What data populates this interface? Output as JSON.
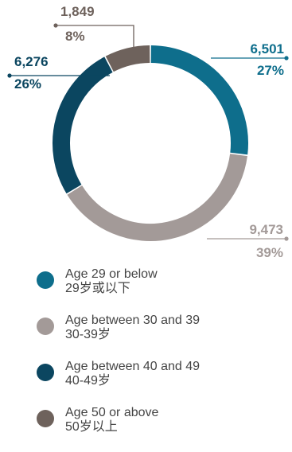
{
  "chart_data": {
    "type": "pie",
    "donut": true,
    "title": "",
    "slices": [
      {
        "label_en": "Age 29 or below",
        "label_zh": "29岁或以下",
        "value": 6501,
        "value_text": "6,501",
        "percent_text": "27%",
        "color": "#0e6e8c"
      },
      {
        "label_en": "Age between 30 and 39",
        "label_zh": "30-39岁",
        "value": 9473,
        "value_text": "9,473",
        "percent_text": "39%",
        "color": "#a39a98"
      },
      {
        "label_en": "Age between 40 and 49",
        "label_zh": "40-49岁",
        "value": 6276,
        "value_text": "6,276",
        "percent_text": "26%",
        "color": "#0b4660"
      },
      {
        "label_en": "Age 50 or above",
        "label_zh": "50岁以上",
        "value": 1849,
        "value_text": "1,849",
        "percent_text": "8%",
        "color": "#6e625c"
      }
    ],
    "legend_position": "bottom-left"
  }
}
